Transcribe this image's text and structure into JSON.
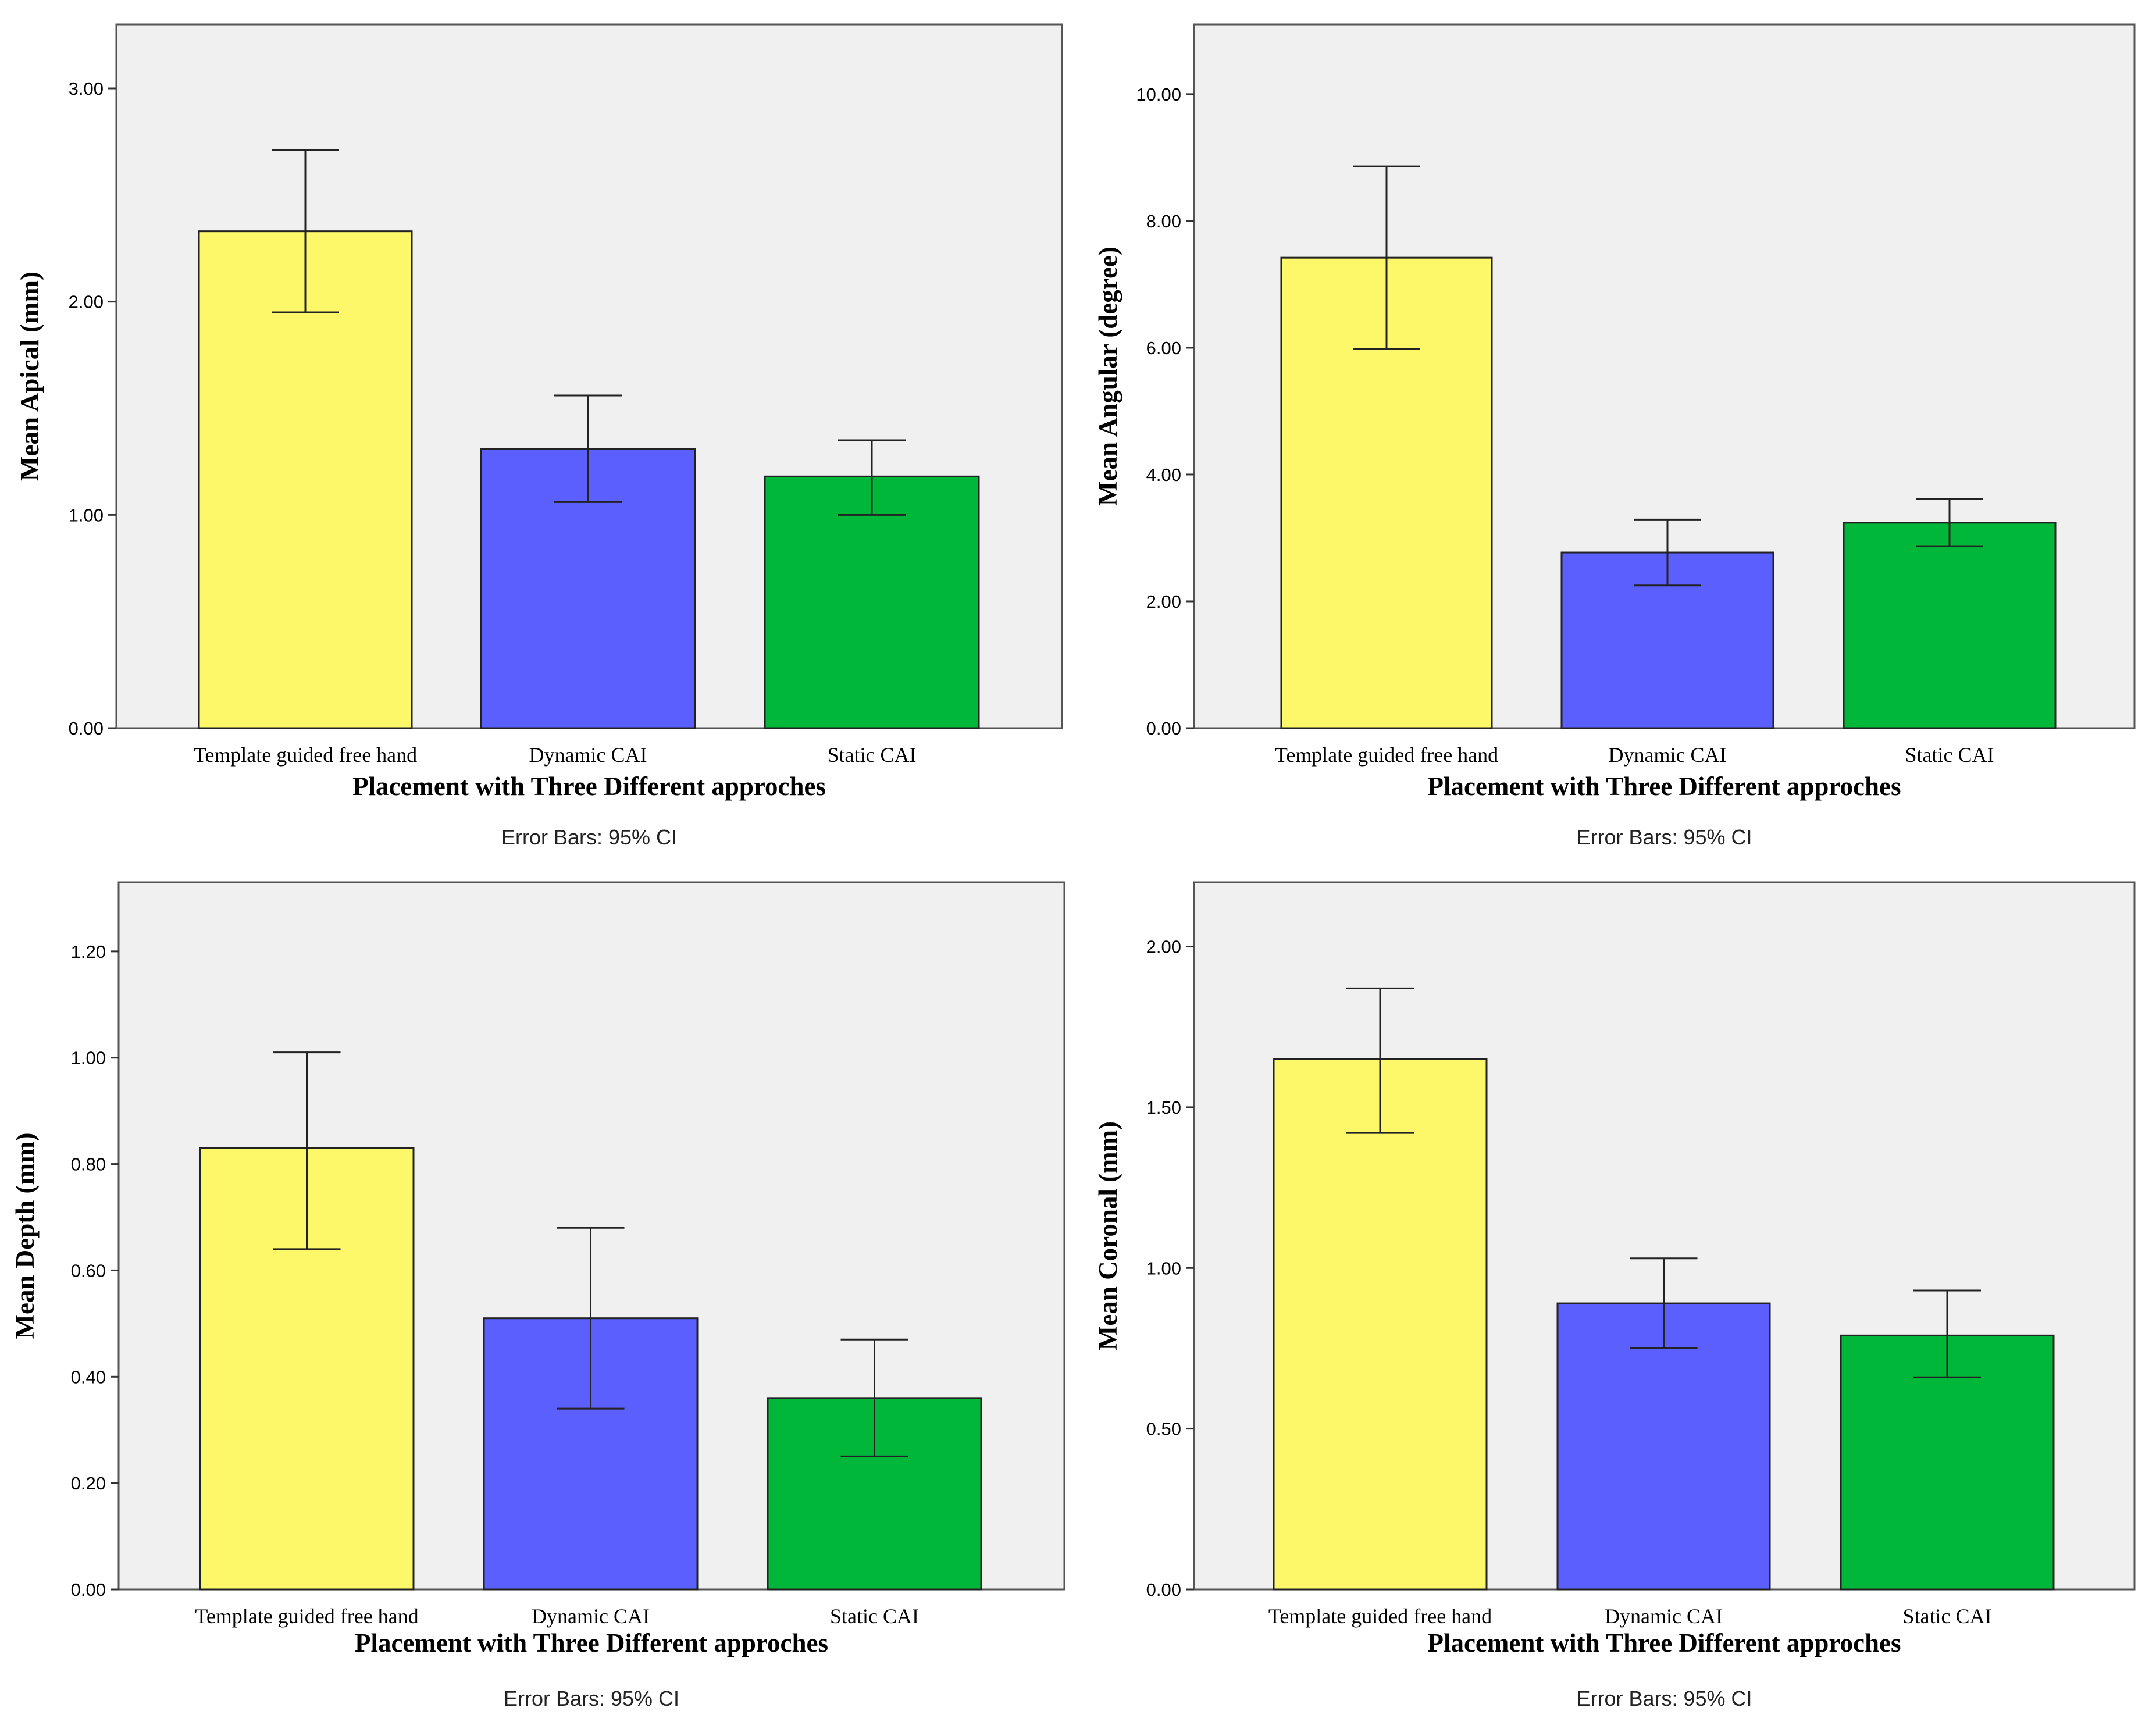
{
  "chart_data": [
    {
      "type": "bar",
      "categories": [
        "Template guided free hand",
        "Dynamic CAI",
        "Static CAI"
      ],
      "values": [
        2.33,
        1.31,
        1.18
      ],
      "ci_low": [
        1.95,
        1.06,
        1.0
      ],
      "ci_high": [
        2.71,
        1.56,
        1.35
      ],
      "ylim": [
        0,
        3.3
      ],
      "yticks": [
        "0.00",
        "1.00",
        "2.00",
        "3.00"
      ],
      "ylabel": "Mean Apical (mm)",
      "xlabel": "Placement with Three Different approches",
      "note": "Error Bars: 95% CI",
      "colors": [
        "#fcf86a",
        "#5b5ffe",
        "#00b739"
      ]
    },
    {
      "type": "bar",
      "categories": [
        "Template guided free hand",
        "Dynamic CAI",
        "Static CAI"
      ],
      "values": [
        7.42,
        2.77,
        3.24
      ],
      "ci_low": [
        5.98,
        2.25,
        2.87
      ],
      "ci_high": [
        8.86,
        3.29,
        3.61
      ],
      "ylim": [
        0,
        11.1
      ],
      "yticks": [
        "0.00",
        "2.00",
        "4.00",
        "6.00",
        "8.00",
        "10.00"
      ],
      "ylabel": "Mean Angular (degree)",
      "xlabel": "Placement with Three Different approches",
      "note": "Error Bars: 95% CI",
      "colors": [
        "#fcf86a",
        "#5b5ffe",
        "#00b739"
      ]
    },
    {
      "type": "bar",
      "categories": [
        "Template guided free hand",
        "Dynamic CAI",
        "Static CAI"
      ],
      "values": [
        0.83,
        0.51,
        0.36
      ],
      "ci_low": [
        0.64,
        0.34,
        0.25
      ],
      "ci_high": [
        1.01,
        0.68,
        0.47
      ],
      "ylim": [
        0,
        1.33
      ],
      "yticks": [
        "0.00",
        "0.20",
        "0.40",
        "0.60",
        "0.80",
        "1.00",
        "1.20"
      ],
      "ylabel": "Mean Depth (mm)",
      "xlabel": "Placement with Three Different approches",
      "note": "Error Bars: 95% CI",
      "colors": [
        "#fcf86a",
        "#5b5ffe",
        "#00b739"
      ]
    },
    {
      "type": "bar",
      "categories": [
        "Template guided free hand",
        "Dynamic CAI",
        "Static CAI"
      ],
      "values": [
        1.65,
        0.89,
        0.79
      ],
      "ci_low": [
        1.42,
        0.75,
        0.66
      ],
      "ci_high": [
        1.87,
        1.03,
        0.93
      ],
      "ylim": [
        0,
        2.2
      ],
      "yticks": [
        "0.00",
        "0.50",
        "1.00",
        "1.50",
        "2.00"
      ],
      "ylabel": "Mean Coronal (mm)",
      "xlabel": "Placement with Three Different approches",
      "note": "Error Bars: 95% CI",
      "colors": [
        "#fcf86a",
        "#5b5ffe",
        "#00b739"
      ]
    }
  ]
}
